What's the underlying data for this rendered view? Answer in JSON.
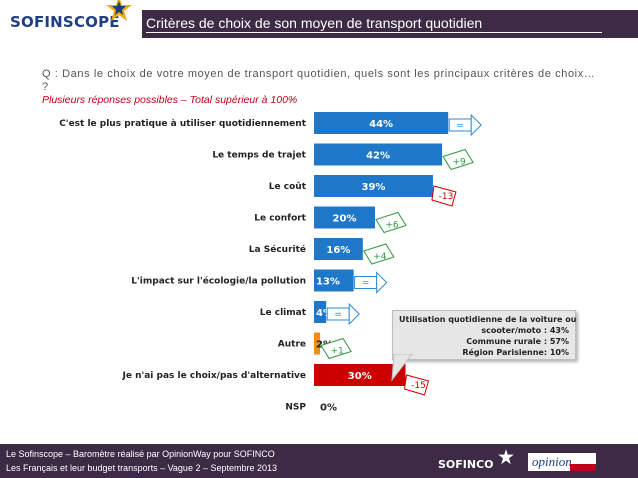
{
  "header": {
    "brand": "SOFINSCOPE",
    "title": "Critères de choix de son moyen de transport quotidien"
  },
  "question": "Q : Dans le choix de votre moyen de transport quotidien, quels sont les principaux critères de choix… ?",
  "note": "Plusieurs réponses possibles – Total supérieur à 100%",
  "colors": {
    "bar_blue": "#1f77c9",
    "bar_orange": "#f28c1c",
    "bar_red": "#cc0000",
    "arrow_green": "#2e9a3e",
    "arrow_red": "#cc0000",
    "arrow_blue": "#2b8bd6",
    "header_purple": "#3d2a45"
  },
  "chart_data": {
    "type": "bar",
    "orientation": "horizontal",
    "categories": [
      "C'est le plus pratique à utiliser quotidiennement",
      "Le temps de trajet",
      "Le coût",
      "Le confort",
      "La Sécurité",
      "L'impact sur l'écologie/la pollution",
      "Le climat",
      "Autre",
      "Je n'ai pas le choix/pas d'alternative",
      "NSP"
    ],
    "values": [
      44,
      42,
      39,
      20,
      16,
      13,
      4,
      2,
      30,
      0
    ],
    "value_labels": [
      "44%",
      "42%",
      "39%",
      "20%",
      "16%",
      "13%",
      "4%",
      "2%",
      "30%",
      "0%"
    ],
    "bar_colors": [
      "blue",
      "blue",
      "blue",
      "blue",
      "blue",
      "blue",
      "blue",
      "orange",
      "red",
      "none"
    ],
    "changes": [
      {
        "label": "=",
        "direction": "flat"
      },
      {
        "label": "+9",
        "direction": "up"
      },
      {
        "label": "-13",
        "direction": "down"
      },
      {
        "label": "+6",
        "direction": "up"
      },
      {
        "label": "+4",
        "direction": "up"
      },
      {
        "label": "=",
        "direction": "flat"
      },
      {
        "label": "=",
        "direction": "flat"
      },
      {
        "label": "+1",
        "direction": "up"
      },
      {
        "label": "-15",
        "direction": "down"
      },
      null
    ],
    "xlim": [
      0,
      50
    ]
  },
  "callout": {
    "lines": [
      "Utilisation quotidienne de la voiture ou",
      "scooter/moto : 43%",
      "Commune rurale : 57%",
      "Région Parisienne: 10%"
    ]
  },
  "footer": {
    "line1": "Le Sofinscope – Baromètre réalisé par OpinionWay pour SOFINCO",
    "line2": "Les Français et leur budget transports – Vague 2 – Septembre 2013",
    "brand": "SOFINCO",
    "partner": "opinion"
  }
}
